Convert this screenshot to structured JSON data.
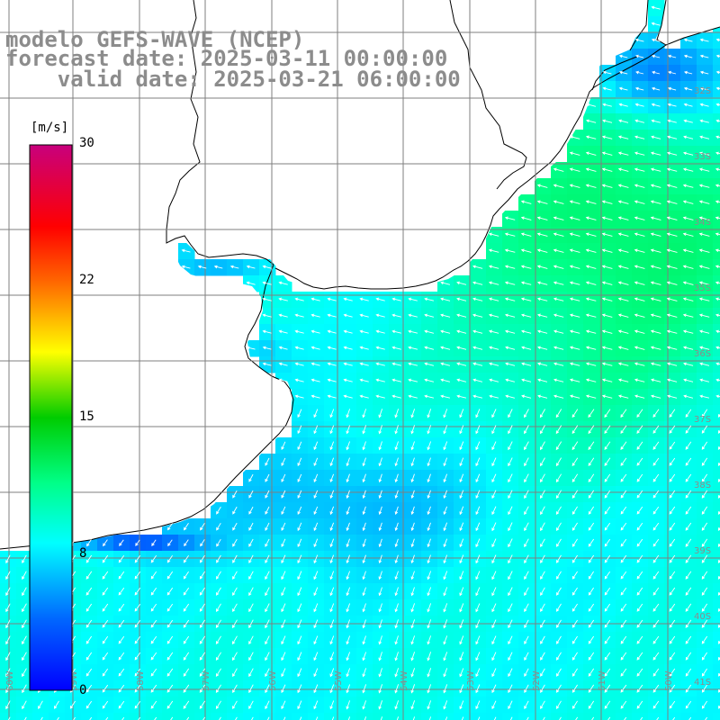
{
  "header": {
    "line1": "modelo GEFS-WAVE (NCEP)",
    "line2": "forecast date: 2025-03-11 00:00:00",
    "line3": "    valid date: 2025-03-21 06:00:00"
  },
  "colorbar": {
    "unit": "[m/s]",
    "ticks": [
      "30",
      "22",
      "15",
      "8",
      "0"
    ],
    "tick_values": [
      30,
      22,
      15,
      8,
      0
    ],
    "range": [
      0,
      30
    ]
  },
  "lat_labels": [
    "32S",
    "33S",
    "34S",
    "35S",
    "36S",
    "37S",
    "38S",
    "39S",
    "40S",
    "41S"
  ],
  "lon_labels": [
    "60W",
    "59W",
    "58W",
    "57W",
    "56W",
    "55W",
    "54W",
    "53W",
    "52W",
    "51W",
    "50W"
  ],
  "colors": {
    "land": "#ffffff",
    "grid": "#7f7f7f",
    "coast": "#000000",
    "arrows": "#ffffff",
    "label": "#8c8c8c"
  },
  "chart_data": {
    "type": "heatmap",
    "title": "modelo GEFS-WAVE (NCEP)",
    "variable": "wind speed",
    "unit": "m/s",
    "color_range": [
      0,
      30
    ],
    "x": {
      "labels": [
        "60W",
        "59W",
        "58W",
        "57W",
        "56W",
        "55W",
        "54W",
        "53W",
        "52W",
        "51W",
        "50W"
      ]
    },
    "y": {
      "labels": [
        "32S",
        "33S",
        "34S",
        "35S",
        "36S",
        "37S",
        "38S",
        "39S",
        "40S",
        "41S"
      ]
    },
    "regions": [
      {
        "area": "north-east shelf near 32S 51W",
        "speed": 3
      },
      {
        "area": "offshore 33S-35S 50W-53W",
        "speed": 12
      },
      {
        "area": "Rio de la Plata and 36S-38S coastal",
        "speed": 7
      },
      {
        "area": "offshore 36S-37S 50W-52W",
        "speed": 10
      },
      {
        "area": "south-west coast 39S 59W-58W",
        "speed": 3
      },
      {
        "area": "south 39S-41S",
        "speed": 8
      }
    ],
    "wind_direction": "mostly from east/north-east toward west/south-west",
    "grid": true
  }
}
